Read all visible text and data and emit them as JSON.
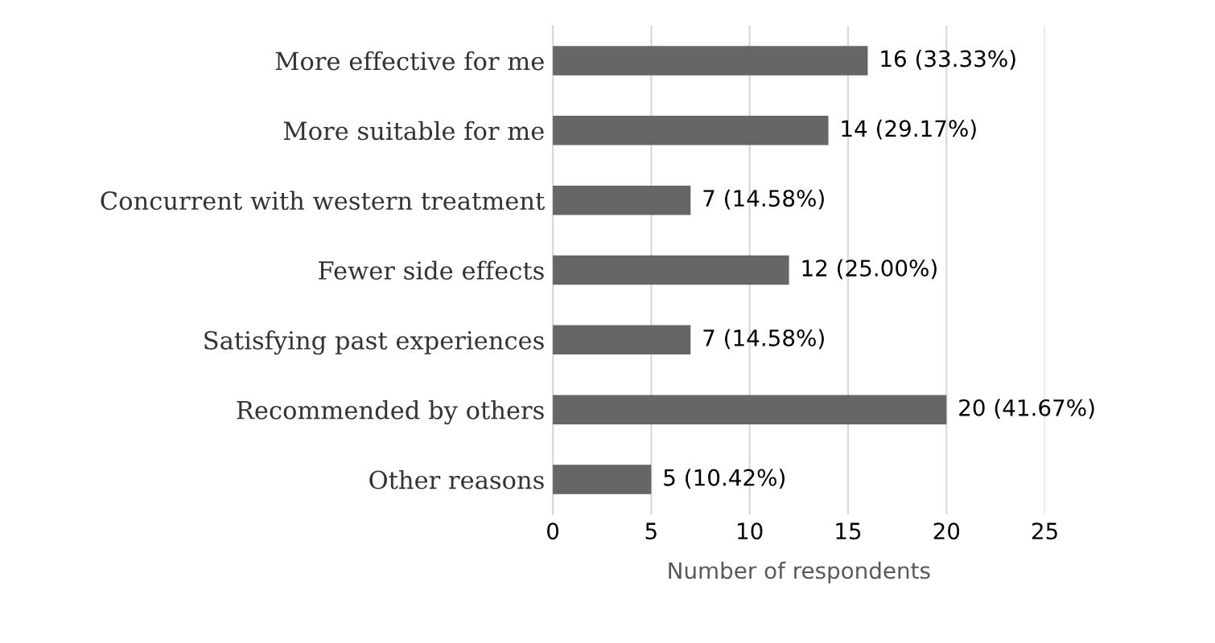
{
  "chart_data": {
    "type": "bar",
    "orientation": "horizontal",
    "xlabel": "Number of respondents",
    "categories": [
      "More effective for me",
      "More suitable for me",
      "Concurrent with western treatment",
      "Fewer side effects",
      "Satisfying past experiences",
      "Recommended by others",
      "Other reasons"
    ],
    "values": [
      16,
      14,
      7,
      12,
      7,
      20,
      5
    ],
    "value_labels": [
      "16 (33.33%)",
      "14 (29.17%)",
      "7 (14.58%)",
      "12 (25.00%)",
      "7 (14.58%)",
      "20 (41.67%)",
      "5 (10.42%)"
    ],
    "color": "#666666",
    "xlim": [
      0,
      25
    ],
    "xticks": [
      0,
      5,
      10,
      15,
      20,
      25
    ],
    "grid": "x"
  }
}
